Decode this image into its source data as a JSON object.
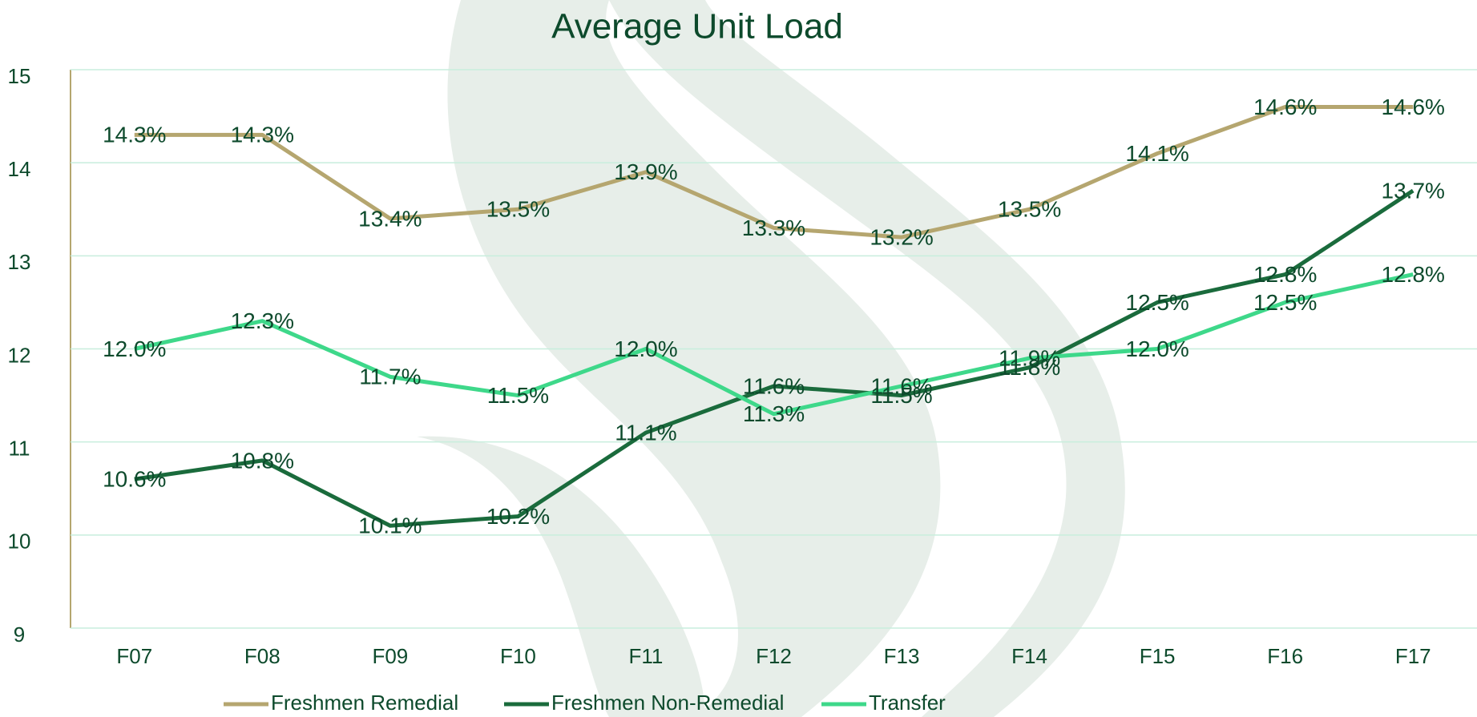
{
  "chart_data": {
    "type": "line",
    "title": "Average Unit Load",
    "categories": [
      "F07",
      "F08",
      "F09",
      "F10",
      "F11",
      "F12",
      "F13",
      "F14",
      "F15",
      "F16",
      "F17"
    ],
    "series": [
      {
        "name": "Freshmen Remedial",
        "color": "#b5a66f",
        "values": [
          14.3,
          14.3,
          13.4,
          13.5,
          13.9,
          13.3,
          13.2,
          13.5,
          14.1,
          14.6,
          14.6
        ],
        "value_labels": [
          "14.3%",
          "14.3%",
          "13.4%",
          "13.5%",
          "13.9%",
          "13.3%",
          "13.2%",
          "13.5%",
          "14.1%",
          "14.6%",
          "14.6%"
        ]
      },
      {
        "name": "Freshmen Non-Remedial",
        "color": "#1a6b3c",
        "values": [
          10.6,
          10.8,
          10.1,
          10.2,
          11.1,
          11.6,
          11.5,
          11.8,
          12.5,
          12.8,
          13.7
        ],
        "value_labels": [
          "10.6%",
          "10.8%",
          "10.1%",
          "10.2%",
          "11.1%",
          "11.6%",
          "11.5%",
          "11.8%",
          "12.5%",
          "12.8%",
          "13.7%"
        ]
      },
      {
        "name": "Transfer",
        "color": "#3ed88a",
        "values": [
          12.0,
          12.3,
          11.7,
          11.5,
          12.0,
          11.3,
          11.6,
          11.9,
          12.0,
          12.5,
          12.8
        ],
        "value_labels": [
          "12.0%",
          "12.3%",
          "11.7%",
          "11.5%",
          "12.0%",
          "11.3%",
          "11.6%",
          "11.9%",
          "12.0%",
          "12.5%",
          "12.8%"
        ]
      }
    ],
    "ylim": [
      9,
      15
    ],
    "yticks": [
      9,
      10,
      11,
      12,
      13,
      14,
      15
    ],
    "grid": true,
    "legend": "bottom"
  }
}
